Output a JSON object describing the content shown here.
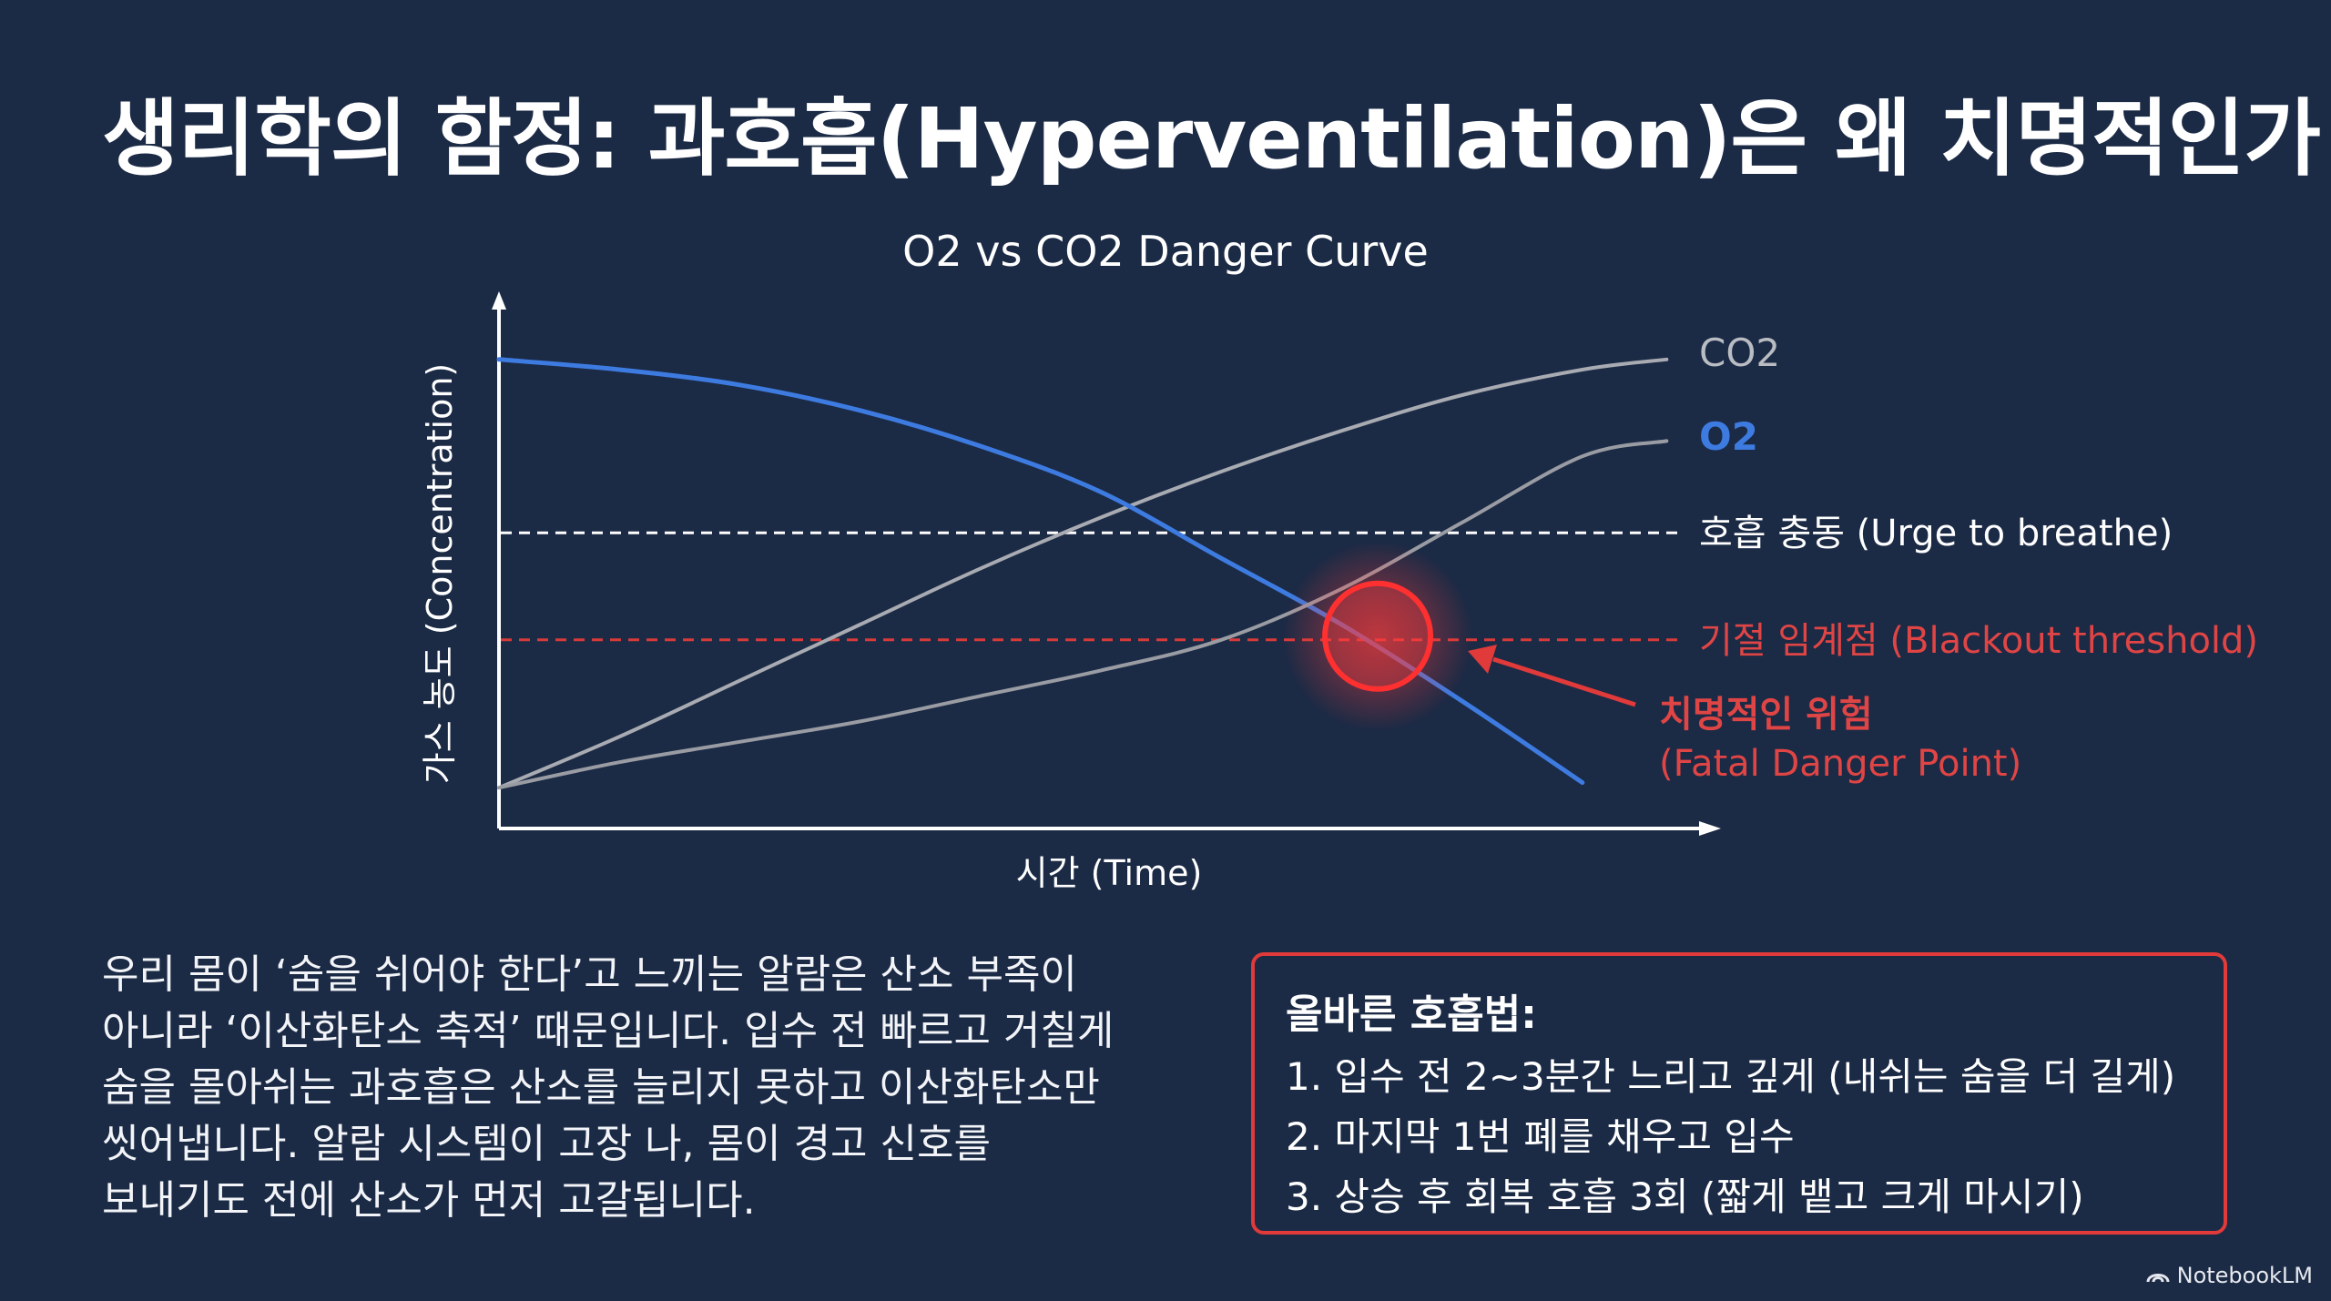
{
  "page": {
    "title": "생리학의 함정: 과호흡(Hyperventilation)은 왜 치명적인가"
  },
  "chart_data": {
    "type": "line",
    "title": "O2 vs CO2 Danger Curve",
    "xlabel": "시간 (Time)",
    "ylabel": "가스 농도 (Concentration)",
    "xlim": [
      0,
      100
    ],
    "ylim": [
      0,
      100
    ],
    "grid": false,
    "series": [
      {
        "name": "CO2",
        "color": "#a8abb1",
        "x": [
          0,
          10,
          20,
          30,
          40,
          50,
          60,
          70,
          80,
          90,
          97
        ],
        "y": [
          8,
          18,
          29,
          40,
          51,
          61,
          70,
          78,
          85,
          90,
          92
        ]
      },
      {
        "name": "O2",
        "color": "#3d7be0",
        "x": [
          0,
          10,
          20,
          30,
          40,
          50,
          60,
          70,
          80,
          90
        ],
        "y": [
          92,
          90,
          87,
          82,
          75,
          66,
          53,
          40,
          25,
          9
        ]
      },
      {
        "name": "",
        "color": "#9a9ca3",
        "x": [
          0,
          10,
          20,
          30,
          40,
          50,
          60,
          70,
          80,
          90,
          97
        ],
        "y": [
          8,
          13,
          17,
          21,
          26,
          31,
          37,
          47,
          60,
          73,
          76
        ]
      }
    ],
    "thresholds": [
      {
        "label": "호흡 충동 (Urge to breathe)",
        "y": 58,
        "color": "#ffffff"
      },
      {
        "label": "기절 임계점 (Blackout threshold)",
        "y": 37,
        "color": "#d93a3a"
      }
    ],
    "annotations": [
      {
        "line1": "치명적인 위험",
        "line2": "(Fatal Danger Point)",
        "x": 73,
        "y": 37,
        "color": "#e03a3a"
      }
    ]
  },
  "body": {
    "paragraph": [
      "우리 몸이 ‘숨을 쉬어야 한다’고 느끼는 알람은 산소 부족이",
      "아니라 ‘이산화탄소 축적’ 때문입니다. 입수 전 빠르고 거칠게",
      "숨을 몰아쉬는 과호흡은 산소를 늘리지 못하고 이산화탄소만",
      "씻어냅니다. 알람 시스템이 고장 나, 몸이 경고 신호를",
      "보내기도 전에 산소가 먼저 고갈됩니다."
    ]
  },
  "tips": {
    "title": "올바른 호흡법:",
    "items": [
      "1. 입수 전 2~3분간 느리고 깊게 (내쉬는 숨을 더 길게)",
      "2. 마지막 1번 폐를 채우고 입수",
      "3. 상승 후 회복 호흡 3회 (짧게 뱉고 크게 마시기)"
    ]
  },
  "brand": {
    "name": "NotebookLM",
    "icon": "notebooklm-logo-icon"
  },
  "colors": {
    "background": "#1b2a45",
    "danger": "#e03a3a",
    "o2": "#3d7be0",
    "co2": "#a8abb1"
  }
}
